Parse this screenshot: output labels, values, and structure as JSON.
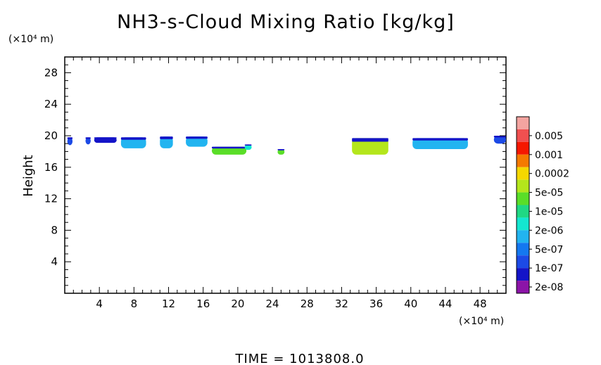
{
  "chart_data": {
    "type": "heatmap",
    "title": "NH3-s-Cloud Mixing Ratio [kg/kg]",
    "ylabel": "Height",
    "y_unit": "(×10⁴ m)",
    "x_unit": "(×10⁴ m)",
    "footer": "TIME  =  1013808.0",
    "xlim": [
      0,
      51
    ],
    "ylim": [
      0,
      30
    ],
    "x_ticks": [
      4,
      8,
      12,
      16,
      20,
      24,
      28,
      32,
      36,
      40,
      44,
      48
    ],
    "y_ticks": [
      4,
      8,
      12,
      16,
      20,
      24,
      28
    ],
    "colorbar": {
      "labels": [
        "0.005",
        "0.001",
        "0.0002",
        "5e-05",
        "1e-05",
        "2e-06",
        "5e-07",
        "1e-07",
        "2e-08"
      ],
      "colors": [
        "#f4a4a0",
        "#f05050",
        "#f51800",
        "#f57a00",
        "#f5d800",
        "#b4e61c",
        "#5ade28",
        "#20d884",
        "#14e6d0",
        "#22b4f0",
        "#1478f0",
        "#1c4ae6",
        "#1414c8",
        "#8c14a8"
      ]
    },
    "clouds": [
      {
        "x0": 0.3,
        "x1": 0.9,
        "y0": 18.8,
        "y1": 19.8,
        "color": "#1c4ae6"
      },
      {
        "x0": 2.4,
        "x1": 3.0,
        "y0": 18.9,
        "y1": 19.8,
        "color": "#1c4ae6"
      },
      {
        "x0": 3.4,
        "x1": 6.0,
        "y0": 19.1,
        "y1": 19.8,
        "color": "#1414c8"
      },
      {
        "x0": 6.5,
        "x1": 9.4,
        "y0": 18.4,
        "y1": 19.8,
        "color": "#22b4f0"
      },
      {
        "x0": 11.0,
        "x1": 12.5,
        "y0": 18.4,
        "y1": 19.9,
        "color": "#22b4f0"
      },
      {
        "x0": 14.0,
        "x1": 16.5,
        "y0": 18.6,
        "y1": 19.9,
        "color": "#22b4f0"
      },
      {
        "x0": 17.0,
        "x1": 21.0,
        "y0": 17.6,
        "y1": 18.6,
        "color": "#5ade28"
      },
      {
        "x0": 20.8,
        "x1": 21.6,
        "y0": 18.2,
        "y1": 18.9,
        "color": "#14e6d0"
      },
      {
        "x0": 24.6,
        "x1": 25.4,
        "y0": 17.6,
        "y1": 18.3,
        "color": "#5ade28"
      },
      {
        "x0": 33.2,
        "x1": 37.4,
        "y0": 17.6,
        "y1": 19.7,
        "color": "#b4e61c"
      },
      {
        "x0": 40.2,
        "x1": 46.6,
        "y0": 18.3,
        "y1": 19.7,
        "color": "#22b4f0"
      },
      {
        "x0": 49.6,
        "x1": 51.0,
        "y0": 19.0,
        "y1": 20.0,
        "color": "#1c4ae6"
      }
    ]
  }
}
